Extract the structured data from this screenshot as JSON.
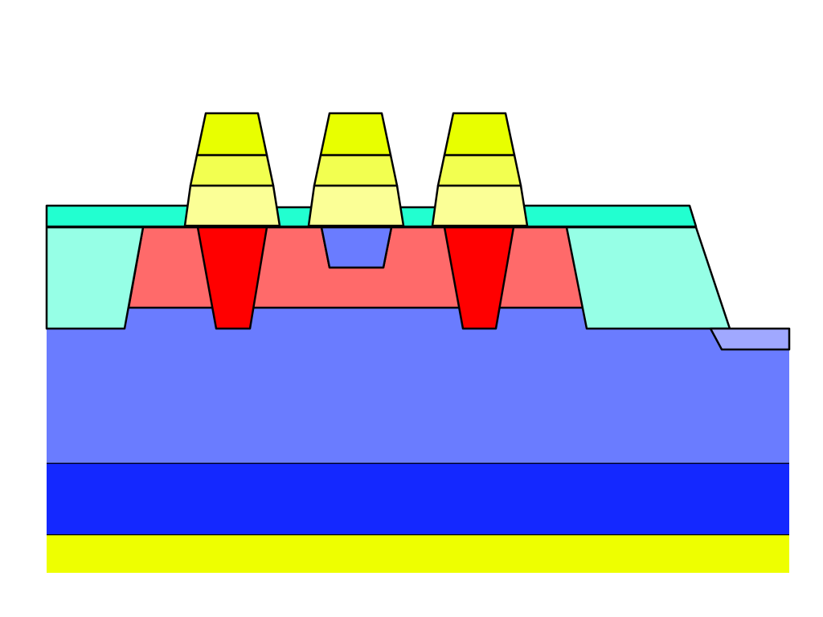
{
  "colors": {
    "background": "#ffffff",
    "outline": "#000000",
    "base_yellow": "#eeff00",
    "deep_blue": "#1428ff",
    "substrate_blue": "#6a7cff",
    "light_blue_step": "#a0a8ff",
    "aqua_block": "#96ffe6",
    "aqua_cap": "#22ffd0",
    "salmon": "#ff6a6a",
    "red_plug": "#ff0000",
    "pad_bright": "#e8ff00",
    "pad_mid": "#f2ff50",
    "pad_pale": "#fbff96"
  },
  "diagram": {
    "type": "layered cross-section",
    "bump_count": 3,
    "plug_count": 2
  }
}
